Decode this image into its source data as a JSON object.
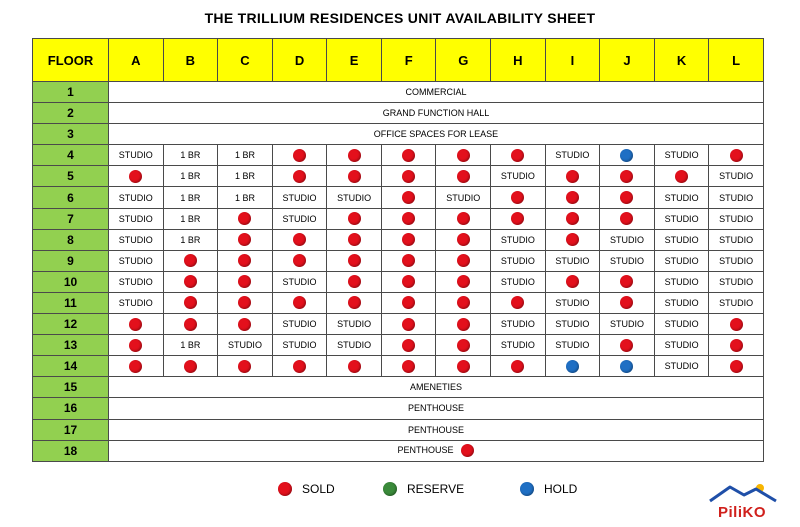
{
  "title": "THE TRILLIUM RESIDENCES UNIT AVAILABILITY SHEET",
  "header": {
    "floor_label": "FLOOR",
    "columns": [
      "A",
      "B",
      "C",
      "D",
      "E",
      "F",
      "G",
      "H",
      "I",
      "J",
      "K",
      "L"
    ]
  },
  "rows": [
    {
      "floor": "1",
      "span": "COMMERCIAL"
    },
    {
      "floor": "2",
      "span": "GRAND FUNCTION HALL"
    },
    {
      "floor": "3",
      "span": "OFFICE SPACES FOR LEASE"
    },
    {
      "floor": "4",
      "cells": [
        "STUDIO",
        "1 BR",
        "1 BR",
        "SOLD",
        "SOLD",
        "SOLD",
        "SOLD",
        "SOLD",
        "STUDIO",
        "HOLD",
        "STUDIO",
        "SOLD"
      ]
    },
    {
      "floor": "5",
      "cells": [
        "SOLD",
        "1 BR",
        "1 BR",
        "SOLD",
        "SOLD",
        "SOLD",
        "SOLD",
        "STUDIO",
        "SOLD",
        "SOLD",
        "SOLD",
        "STUDIO"
      ]
    },
    {
      "floor": "6",
      "cells": [
        "STUDIO",
        "1 BR",
        "1 BR",
        "STUDIO",
        "STUDIO",
        "SOLD",
        "STUDIO",
        "SOLD",
        "SOLD",
        "SOLD",
        "STUDIO",
        "STUDIO"
      ]
    },
    {
      "floor": "7",
      "cells": [
        "STUDIO",
        "1 BR",
        "SOLD",
        "STUDIO",
        "SOLD",
        "SOLD",
        "SOLD",
        "SOLD",
        "SOLD",
        "SOLD",
        "STUDIO",
        "STUDIO"
      ]
    },
    {
      "floor": "8",
      "cells": [
        "STUDIO",
        "1 BR",
        "SOLD",
        "SOLD",
        "SOLD",
        "SOLD",
        "SOLD",
        "STUDIO",
        "SOLD",
        "STUDIO",
        "STUDIO",
        "STUDIO"
      ]
    },
    {
      "floor": "9",
      "cells": [
        "STUDIO",
        "SOLD",
        "SOLD",
        "SOLD",
        "SOLD",
        "SOLD",
        "SOLD",
        "STUDIO",
        "STUDIO",
        "STUDIO",
        "STUDIO",
        "STUDIO"
      ]
    },
    {
      "floor": "10",
      "cells": [
        "STUDIO",
        "SOLD",
        "SOLD",
        "STUDIO",
        "SOLD",
        "SOLD",
        "SOLD",
        "STUDIO",
        "SOLD",
        "SOLD",
        "STUDIO",
        "STUDIO"
      ]
    },
    {
      "floor": "11",
      "cells": [
        "STUDIO",
        "SOLD",
        "SOLD",
        "SOLD",
        "SOLD",
        "SOLD",
        "SOLD",
        "SOLD",
        "STUDIO",
        "SOLD",
        "STUDIO",
        "STUDIO"
      ]
    },
    {
      "floor": "12",
      "cells": [
        "SOLD",
        "SOLD",
        "SOLD",
        "STUDIO",
        "STUDIO",
        "SOLD",
        "SOLD",
        "STUDIO",
        "STUDIO",
        "STUDIO",
        "STUDIO",
        "SOLD"
      ]
    },
    {
      "floor": "13",
      "cells": [
        "SOLD",
        "1 BR",
        "STUDIO",
        "STUDIO",
        "STUDIO",
        "SOLD",
        "SOLD",
        "STUDIO",
        "STUDIO",
        "SOLD",
        "STUDIO",
        "SOLD"
      ]
    },
    {
      "floor": "14",
      "cells": [
        "SOLD",
        "SOLD",
        "SOLD",
        "SOLD",
        "SOLD",
        "SOLD",
        "SOLD",
        "SOLD",
        "HOLD",
        "HOLD",
        "STUDIO",
        "SOLD"
      ]
    },
    {
      "floor": "15",
      "span": "AMENETIES"
    },
    {
      "floor": "16",
      "span": "PENTHOUSE"
    },
    {
      "floor": "17",
      "span": "PENTHOUSE"
    },
    {
      "floor": "18",
      "span": "PENTHOUSE",
      "span_status": "SOLD"
    }
  ],
  "legend": [
    {
      "label": "SOLD",
      "color": "#e3101c"
    },
    {
      "label": "RESERVE",
      "color": "#3a8a3a"
    },
    {
      "label": "HOLD",
      "color": "#1f6fc4"
    }
  ],
  "logo": {
    "text": "PiliKO",
    "icon": "house-roof-logo-icon"
  }
}
